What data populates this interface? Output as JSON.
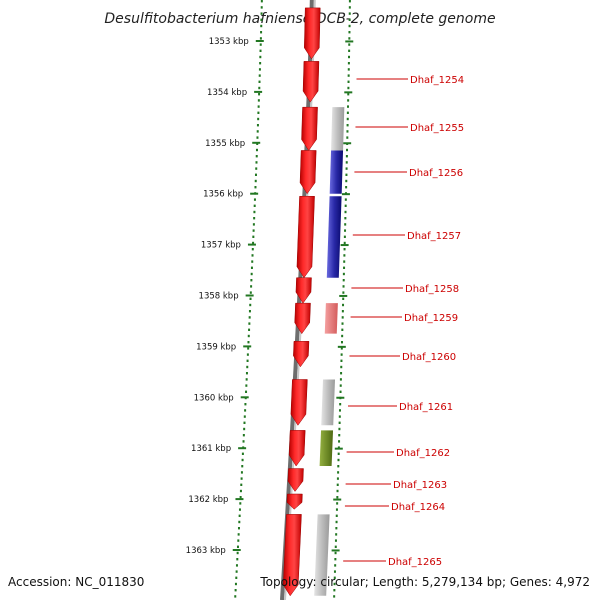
{
  "title": "Desulfitobacterium hafniense DCB-2, complete genome",
  "accession": "Accession: NC_011830",
  "topology": "Topology: circular; Length: 5,279,134 bp; Genes: 4,972",
  "colors": {
    "cds_forward": "#ee1111",
    "gene_label": "#cc0000",
    "ruler_dots": "#227722",
    "backbone": "#888888",
    "cog_gray": "#b8b8b8",
    "cog_blue": "#22229a",
    "cog_pink": "#e87878",
    "cog_green": "#6a8a22"
  },
  "kbp_ticks": [
    "1353 kbp",
    "1354 kbp",
    "1355 kbp",
    "1356 kbp",
    "1357 kbp",
    "1358 kbp",
    "1359 kbp",
    "1360 kbp",
    "1361 kbp",
    "1362 kbp",
    "1363 kbp"
  ],
  "genes": [
    {
      "label": "Dhaf_1254",
      "start_kbp": 1353.4,
      "end_kbp": 1354.2,
      "cog": ""
    },
    {
      "label": "Dhaf_1255",
      "start_kbp": 1354.3,
      "end_kbp": 1355.15,
      "cog": "gray"
    },
    {
      "label": "Dhaf_1256",
      "start_kbp": 1355.15,
      "end_kbp": 1356.0,
      "cog": "blue"
    },
    {
      "label": "Dhaf_1257",
      "start_kbp": 1356.05,
      "end_kbp": 1357.65,
      "cog": "blue"
    },
    {
      "label": "Dhaf_1258",
      "start_kbp": 1357.65,
      "end_kbp": 1358.15,
      "cog": ""
    },
    {
      "label": "Dhaf_1259",
      "start_kbp": 1358.15,
      "end_kbp": 1358.75,
      "cog": "pink"
    },
    {
      "label": "Dhaf_1260",
      "start_kbp": 1358.9,
      "end_kbp": 1359.4,
      "cog": ""
    },
    {
      "label": "Dhaf_1261",
      "start_kbp": 1359.65,
      "end_kbp": 1360.55,
      "cog": "gray"
    },
    {
      "label": "Dhaf_1262",
      "start_kbp": 1360.65,
      "end_kbp": 1361.35,
      "cog": "green"
    },
    {
      "label": "Dhaf_1263",
      "start_kbp": 1361.4,
      "end_kbp": 1361.85,
      "cog": ""
    },
    {
      "label": "Dhaf_1264",
      "start_kbp": 1361.9,
      "end_kbp": 1362.2,
      "cog": ""
    },
    {
      "label": "Dhaf_1265",
      "start_kbp": 1362.3,
      "end_kbp": 1363.9,
      "cog": "gray"
    }
  ],
  "partial_gene_top": {
    "start_kbp": 1352.35,
    "end_kbp": 1353.35,
    "cog": ""
  }
}
